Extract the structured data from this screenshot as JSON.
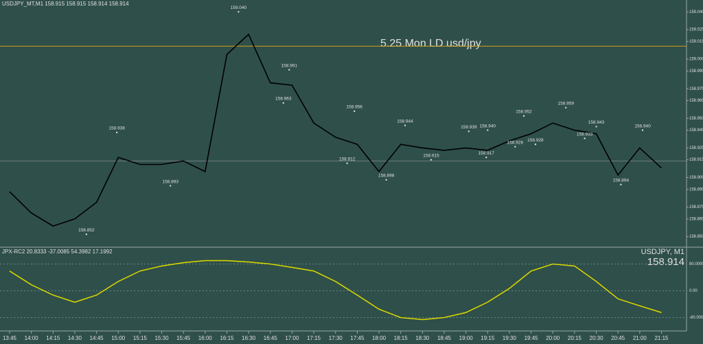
{
  "chart_data": {
    "type": "line",
    "title": "USDJPY_MT,M1  158.915 158.915 158.914 158.914",
    "annotation": "5.25 Mon LD usd/jpy",
    "symbol_label": "USDJPY, M1",
    "current_price": {
      "value": 158.914,
      "label": "158.914"
    },
    "x": [
      "13:45",
      "14:00",
      "14:15",
      "14:30",
      "14:45",
      "15:00",
      "15:15",
      "15:30",
      "15:45",
      "16:00",
      "16:15",
      "16:30",
      "16:45",
      "17:00",
      "17:15",
      "17:30",
      "17:45",
      "18:00",
      "18:15",
      "18:30",
      "18:45",
      "19:00",
      "19:15",
      "19:30",
      "19:45",
      "20:00",
      "20:15",
      "20:30",
      "20:45",
      "21:00",
      "21:15"
    ],
    "series": [
      {
        "name": "USDJPY",
        "color": "#000000",
        "values": [
          158.888,
          158.87,
          158.859,
          158.865,
          158.879,
          158.917,
          158.911,
          158.911,
          158.914,
          158.905,
          159.004,
          159.021,
          158.98,
          158.978,
          158.946,
          158.934,
          158.928,
          158.905,
          158.928,
          158.925,
          158.923,
          158.925,
          158.923,
          158.931,
          158.937,
          158.946,
          158.94,
          158.937,
          158.902,
          158.925,
          158.908
        ]
      }
    ],
    "ylim": [
      158.844,
      159.05
    ],
    "yticks": [
      {
        "value": 159.04,
        "label": "159.040"
      },
      {
        "value": 159.025,
        "label": "159.025"
      },
      {
        "value": 159.015,
        "label": "159.015"
      },
      {
        "value": 159.0,
        "label": "159.000"
      },
      {
        "value": 158.99,
        "label": "158.990"
      },
      {
        "value": 158.975,
        "label": "158.975"
      },
      {
        "value": 158.965,
        "label": "158.965"
      },
      {
        "value": 158.95,
        "label": "158.950"
      },
      {
        "value": 158.94,
        "label": "158.940"
      },
      {
        "value": 158.925,
        "label": "158.925"
      },
      {
        "value": 158.915,
        "label": "158.915"
      },
      {
        "value": 158.9,
        "label": "158.900"
      },
      {
        "value": 158.89,
        "label": "158.890"
      },
      {
        "value": 158.875,
        "label": "158.875"
      },
      {
        "value": 158.865,
        "label": "158.865"
      },
      {
        "value": 158.85,
        "label": "158.850"
      }
    ],
    "level_line": {
      "value": 159.011,
      "color": "#d4a017"
    },
    "price_labels": [
      {
        "x": "14:59",
        "value": 158.938,
        "label": "158.938"
      },
      {
        "x": "16:23",
        "value": 159.04,
        "label": "159.040"
      },
      {
        "x": "16:58",
        "value": 158.991,
        "label": "158.991"
      },
      {
        "x": "16:54",
        "value": 158.963,
        "label": "158.963"
      },
      {
        "x": "17:43",
        "value": 158.956,
        "label": "158.956"
      },
      {
        "x": "15:36",
        "value": 158.893,
        "label": "158.893"
      },
      {
        "x": "14:38",
        "value": 158.852,
        "label": "158.852"
      },
      {
        "x": "17:38",
        "value": 158.912,
        "label": "158.912"
      },
      {
        "x": "18:05",
        "value": 158.898,
        "label": "158.898"
      },
      {
        "x": "18:18",
        "value": 158.944,
        "label": "158.944"
      },
      {
        "x": "18:36",
        "value": 158.915,
        "label": "158.915"
      },
      {
        "x": "19:02",
        "value": 158.939,
        "label": "158.939"
      },
      {
        "x": "19:14",
        "value": 158.917,
        "label": "158.917"
      },
      {
        "x": "19:15",
        "value": 158.94,
        "label": "158.940"
      },
      {
        "x": "19:34",
        "value": 158.926,
        "label": "158.926"
      },
      {
        "x": "19:40",
        "value": 158.952,
        "label": "158.952"
      },
      {
        "x": "19:48",
        "value": 158.928,
        "label": "158.928"
      },
      {
        "x": "20:09",
        "value": 158.959,
        "label": "158.959"
      },
      {
        "x": "20:22",
        "value": 158.933,
        "label": "158.933"
      },
      {
        "x": "20:30",
        "value": 158.943,
        "label": "158.943"
      },
      {
        "x": "20:47",
        "value": 158.894,
        "label": "158.894"
      },
      {
        "x": "21:02",
        "value": 158.94,
        "label": "158.940"
      }
    ],
    "oscillator": {
      "title": "JPX-RC2 20.8333 -37.0085 54.3982 17.1992",
      "ylim": [
        -120,
        120
      ],
      "yticks": [
        {
          "value": 80,
          "label": "80.0000"
        },
        {
          "value": 0,
          "label": "0.00"
        },
        {
          "value": -80,
          "label": "-80.0000"
        }
      ],
      "series": [
        {
          "name": "slow",
          "color": "#d4d400",
          "values": [
            59,
            18,
            -13,
            -34,
            -13,
            28,
            59,
            74,
            84,
            90,
            90,
            86,
            80,
            70,
            59,
            28,
            -13,
            -55,
            -80,
            -86,
            -80,
            -65,
            -34,
            7,
            59,
            80,
            74,
            28,
            -24,
            -45,
            -65
          ]
        }
      ]
    }
  }
}
